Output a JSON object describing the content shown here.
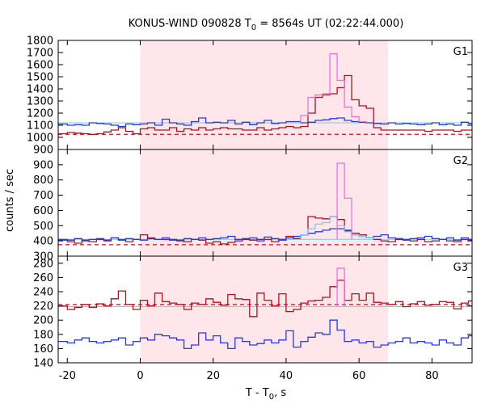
{
  "chart_data": {
    "type": "line",
    "title_main": "KONUS-WIND 090828 T",
    "title_sub": "0",
    "title_rest": " = 8564s UT (02:22:44.000)",
    "xlabel_main": "T - T",
    "xlabel_sub": "0",
    "xlabel_rest": ", s",
    "ylabel": "counts / sec",
    "xlim": [
      -22.5,
      91
    ],
    "x_ticks": [
      "-20",
      "0",
      "20",
      "40",
      "60",
      "80"
    ],
    "x_tick_values": [
      -20,
      0,
      20,
      40,
      60,
      80
    ],
    "highlight_interval": [
      0,
      68
    ],
    "colors": {
      "highlight": "#ffe6ea",
      "red": "#b01020",
      "blue": "#2a3bd0",
      "cyan": "#7ec8f0",
      "pink": "#e070d0",
      "pink_light": "#f0a0c0",
      "dash": "#c01020"
    },
    "bin_edges": [
      -22.5,
      -20,
      -18,
      -16,
      -14,
      -12,
      -10,
      -8,
      -6,
      -4,
      -2,
      0,
      2,
      4,
      6,
      8,
      10,
      12,
      14,
      16,
      18,
      20,
      22,
      24,
      26,
      28,
      30,
      32,
      34,
      36,
      38,
      40,
      42,
      44,
      46,
      48,
      50,
      52,
      54,
      56,
      58,
      60,
      62,
      64,
      66,
      68,
      70,
      72,
      74,
      76,
      78,
      80,
      82,
      84,
      86,
      88,
      90,
      91
    ],
    "panels": [
      {
        "label": "G1",
        "ylim": [
          900,
          1800
        ],
        "y_ticks": [
          "900",
          "1000",
          "1100",
          "1200",
          "1300",
          "1400",
          "1500",
          "1600",
          "1700",
          "1800"
        ],
        "y_tick_values": [
          900,
          1000,
          1100,
          1200,
          1300,
          1400,
          1500,
          1600,
          1700,
          1800
        ],
        "background_dashed": 1025,
        "background_flat": 1120,
        "series": [
          {
            "color_key": "red",
            "values": [
              1030,
              1040,
              1035,
              1030,
              1025,
              1030,
              1045,
              1060,
              1080,
              1050,
              1030,
              1070,
              1080,
              1060,
              1060,
              1080,
              1050,
              1070,
              1060,
              1080,
              1060,
              1070,
              1080,
              1070,
              1070,
              1060,
              1060,
              1080,
              1060,
              1070,
              1080,
              1090,
              1080,
              1090,
              1200,
              1330,
              1350,
              1360,
              1410,
              1510,
              1310,
              1260,
              1240,
              1080,
              1060,
              1060,
              1060,
              1060,
              1060,
              1060,
              1050,
              1060,
              1060,
              1060,
              1050,
              1060,
              1060
            ]
          },
          {
            "color_key": "blue",
            "values": [
              1110,
              1100,
              1105,
              1100,
              1120,
              1115,
              1110,
              1100,
              1090,
              1110,
              1105,
              1110,
              1120,
              1100,
              1150,
              1120,
              1110,
              1100,
              1130,
              1160,
              1120,
              1125,
              1120,
              1140,
              1110,
              1125,
              1105,
              1120,
              1140,
              1115,
              1120,
              1130,
              1130,
              1120,
              1125,
              1140,
              1145,
              1155,
              1160,
              1140,
              1130,
              1125,
              1120,
              1115,
              1110,
              1120,
              1110,
              1115,
              1110,
              1105,
              1110,
              1120,
              1105,
              1110,
              1100,
              1125,
              1115
            ]
          },
          {
            "color_key": "pink",
            "from": 44,
            "to": 62,
            "values": [
              1180,
              1330,
              1350,
              1360,
              1690,
              1470,
              1250,
              1170,
              1130
            ]
          }
        ]
      },
      {
        "label": "G2",
        "ylim": [
          300,
          1000
        ],
        "y_ticks": [
          "300",
          "400",
          "500",
          "600",
          "700",
          "800",
          "900"
        ],
        "y_tick_values": [
          300,
          400,
          500,
          600,
          700,
          800,
          900
        ],
        "background_dashed": 375,
        "background_flat": 410,
        "series": [
          {
            "color_key": "red",
            "values": [
              405,
              395,
              385,
              400,
              395,
              410,
              400,
              420,
              405,
              395,
              410,
              440,
              420,
              410,
              410,
              405,
              400,
              395,
              410,
              405,
              385,
              395,
              380,
              390,
              400,
              410,
              405,
              400,
              410,
              395,
              405,
              430,
              415,
              440,
              560,
              550,
              545,
              560,
              540,
              465,
              450,
              440,
              420,
              410,
              400,
              395,
              410,
              405,
              400,
              410,
              395,
              400,
              410,
              400,
              395,
              410,
              405
            ]
          },
          {
            "color_key": "blue",
            "values": [
              410,
              405,
              415,
              405,
              410,
              415,
              405,
              420,
              410,
              415,
              410,
              405,
              415,
              410,
              420,
              410,
              405,
              415,
              410,
              420,
              410,
              415,
              420,
              430,
              410,
              415,
              420,
              410,
              425,
              415,
              410,
              420,
              430,
              440,
              450,
              460,
              470,
              480,
              480,
              470,
              440,
              430,
              420,
              430,
              440,
              420,
              415,
              410,
              415,
              420,
              430,
              415,
              410,
              420,
              405,
              420,
              410
            ]
          },
          {
            "color_key": "cyan",
            "from": 44,
            "to": 64,
            "values": [
              440,
              480,
              510,
              520,
              560,
              500,
              460,
              440,
              430,
              420
            ]
          },
          {
            "color_key": "pink",
            "from": 54,
            "to": 58,
            "values": [
              910,
              680
            ]
          }
        ]
      },
      {
        "label": "G3",
        "ylim": [
          140,
          290
        ],
        "y_ticks": [
          "140",
          "160",
          "180",
          "200",
          "220",
          "240",
          "260",
          "280"
        ],
        "y_tick_values": [
          140,
          160,
          180,
          200,
          220,
          240,
          260,
          280
        ],
        "background_dashed": 222,
        "background_flat": 219,
        "series": [
          {
            "color_key": "red",
            "values": [
              220,
              215,
              218,
              222,
              218,
              223,
              220,
              230,
              241,
              222,
              215,
              228,
              220,
              238,
              226,
              224,
              222,
              215,
              224,
              222,
              230,
              225,
              221,
              236,
              230,
              229,
              205,
              238,
              228,
              220,
              237,
              212,
              215,
              224,
              227,
              228,
              232,
              247,
              256,
              228,
              237,
              228,
              238,
              225,
              224,
              222,
              226,
              219,
              223,
              226,
              221,
              222,
              226,
              225,
              216,
              224,
              227
            ]
          },
          {
            "color_key": "blue",
            "values": [
              170,
              168,
              172,
              175,
              170,
              168,
              170,
              172,
              175,
              165,
              170,
              175,
              172,
              180,
              178,
              175,
              172,
              160,
              165,
              182,
              172,
              178,
              168,
              160,
              175,
              170,
              165,
              167,
              172,
              168,
              172,
              185,
              162,
              170,
              176,
              182,
              180,
              200,
              186,
              170,
              172,
              168,
              170,
              162,
              165,
              168,
              170,
              175,
              168,
              170,
              168,
              165,
              172,
              168,
              165,
              175,
              178
            ]
          },
          {
            "color_key": "pink",
            "from": 54,
            "to": 56,
            "values": [
              273
            ]
          }
        ]
      }
    ]
  }
}
